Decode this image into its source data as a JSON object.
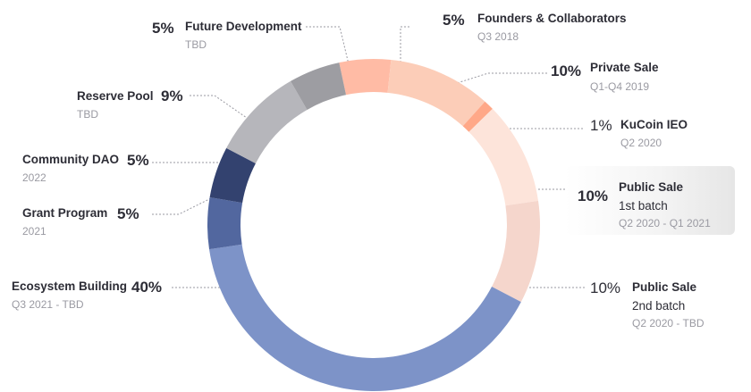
{
  "chart_data": {
    "type": "pie",
    "donut": true,
    "title": "",
    "series": [
      {
        "name": "Founders & Collaborators",
        "pct_label": "5%",
        "value": 5,
        "period": "Q3 2018",
        "color": "#ffbba5"
      },
      {
        "name": "Private Sale",
        "pct_label": "10%",
        "value": 10,
        "period": "Q1-Q4 2019",
        "color": "#fccdb8"
      },
      {
        "name": "KuCoin IEO",
        "pct_label": "1%",
        "value": 1,
        "period": "Q2 2020",
        "color": "#ffa888"
      },
      {
        "name": "Public Sale",
        "name_line2": "1st batch",
        "pct_label": "10%",
        "value": 10,
        "period": "Q2 2020 - Q1 2021",
        "color": "#fde4da",
        "highlight": true
      },
      {
        "name": "Public Sale",
        "name_line2": "2nd batch",
        "pct_label": "10%",
        "value": 10,
        "period": "Q2 2020 - TBD",
        "color": "#f5d6cc"
      },
      {
        "name": "Ecosystem Building",
        "pct_label": "40%",
        "value": 40,
        "period": "Q3 2021 - TBD",
        "color": "#7d93c8"
      },
      {
        "name": "Grant Program",
        "pct_label": "5%",
        "value": 5,
        "period": "2021",
        "color": "#52679f"
      },
      {
        "name": "Community DAO",
        "pct_label": "5%",
        "value": 5,
        "period": "2022",
        "color": "#33426f"
      },
      {
        "name": "Reserve Pool",
        "pct_label": "9%",
        "value": 9,
        "period": "TBD",
        "color": "#b6b6bb"
      },
      {
        "name": "Future Development",
        "pct_label": "5%",
        "value": 5,
        "period": "TBD",
        "color": "#9d9da2"
      }
    ],
    "legend": "none"
  }
}
